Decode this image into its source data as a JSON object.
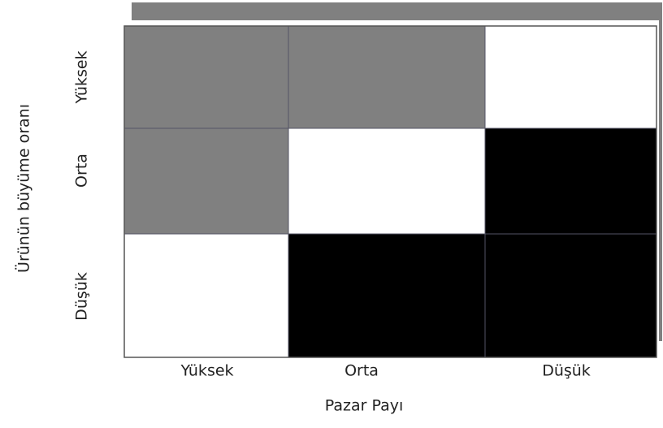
{
  "x_axis_title": "Pazar Payı",
  "y_axis_title": "Ürünün büyüme oranı",
  "columns": [
    "Yüksek",
    "Orta",
    "Düşük"
  ],
  "rows": [
    "Yüksek",
    "Orta",
    "Düşük"
  ],
  "cells": [
    [
      "#808080",
      "#808080",
      "#ffffff"
    ],
    [
      "#808080",
      "#ffffff",
      "#000000"
    ],
    [
      "#ffffff",
      "#000000",
      "#000000"
    ]
  ]
}
